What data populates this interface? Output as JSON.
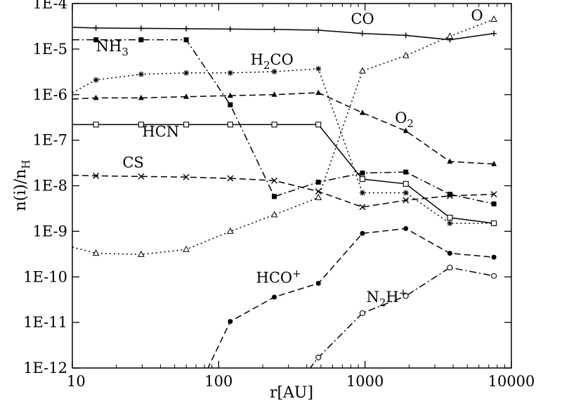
{
  "chart_data": {
    "type": "line",
    "x_scale": "log",
    "y_scale": "log",
    "xlim": [
      10,
      10000
    ],
    "ylim": [
      1e-12,
      0.0001
    ],
    "xlabel": "r[AU]",
    "ylabel": "n(i)/nH",
    "x_ticks": [
      "10",
      "100",
      "1000",
      "10000"
    ],
    "y_ticks": [
      "1E-12",
      "1E-11",
      "1E-10",
      "1E-9",
      "1E-8",
      "1E-7",
      "1E-6",
      "1E-5",
      "1E-4"
    ],
    "grid": false,
    "legend": "none",
    "series": [
      {
        "name": "CO",
        "line": "solid",
        "marker": "plus",
        "x": [
          10,
          14.5,
          29.5,
          60,
          120,
          240,
          480,
          960,
          1900,
          3800,
          7600
        ],
        "y": [
          3e-05,
          2.9e-05,
          2.85e-05,
          2.8e-05,
          2.75e-05,
          2.7e-05,
          2.6e-05,
          2.2e-05,
          2e-05,
          1.6e-05,
          2.2e-05
        ]
      },
      {
        "name": "NH3",
        "line": "dashdot",
        "marker": "filled-square",
        "x": [
          10,
          14.5,
          29.5,
          60,
          120,
          240,
          480,
          960,
          1900,
          3800,
          7600
        ],
        "y": [
          1.6e-05,
          1.6e-05,
          1.6e-05,
          1.6e-05,
          6e-07,
          5.8e-09,
          1.2e-08,
          1.9e-08,
          2e-08,
          6.5e-09,
          4e-09
        ]
      },
      {
        "name": "H2CO",
        "line": "dotted",
        "marker": "asterisk",
        "x": [
          10,
          14.5,
          29.5,
          60,
          120,
          240,
          480,
          960,
          1900,
          3800,
          7600
        ],
        "y": [
          1.1e-06,
          2.1e-06,
          2.8e-06,
          3e-06,
          3e-06,
          3.2e-06,
          3.7e-06,
          7e-09,
          7e-09,
          1.5e-09,
          1.5e-09
        ]
      },
      {
        "name": "O2",
        "line": "dashed",
        "marker": "filled-triangle",
        "x": [
          10,
          14.5,
          29.5,
          60,
          120,
          240,
          480,
          960,
          1900,
          3800,
          7600
        ],
        "y": [
          8e-07,
          8.5e-07,
          8.5e-07,
          9e-07,
          9.5e-07,
          1e-06,
          1.1e-06,
          4e-07,
          1.6e-07,
          3.4e-08,
          3e-08
        ]
      },
      {
        "name": "HCN",
        "line": "solid",
        "marker": "open-square",
        "x": [
          10,
          14.5,
          29.5,
          60,
          120,
          240,
          480,
          960,
          1900,
          3800,
          7600
        ],
        "y": [
          2.2e-07,
          2.2e-07,
          2.2e-07,
          2.2e-07,
          2.2e-07,
          2.2e-07,
          2.2e-07,
          1.4e-08,
          1.1e-08,
          2e-09,
          1.5e-09
        ]
      },
      {
        "name": "CS",
        "line": "dashed",
        "marker": "cross",
        "x": [
          10,
          14.5,
          29.5,
          60,
          120,
          240,
          480,
          960,
          1900,
          3800,
          7600
        ],
        "y": [
          1.7e-08,
          1.65e-08,
          1.6e-08,
          1.55e-08,
          1.45e-08,
          1.3e-08,
          7.5e-09,
          3.4e-09,
          4.8e-09,
          6e-09,
          6.5e-09
        ]
      },
      {
        "name": "O",
        "line": "dotted",
        "marker": "open-triangle",
        "x": [
          10,
          14.5,
          29.5,
          60,
          120,
          240,
          480,
          960,
          1900,
          3800,
          7600
        ],
        "y": [
          4.5e-10,
          3.3e-10,
          3.1e-10,
          4e-10,
          1e-09,
          2.3e-09,
          5.5e-09,
          3.3e-06,
          7.2e-06,
          1.9e-05,
          4.5e-05
        ]
      },
      {
        "name": "HCO+",
        "line": "dashed",
        "marker": "filled-circle",
        "x": [
          60,
          120,
          240,
          480,
          960,
          1900,
          3800,
          7600
        ],
        "y": [
          1e-13,
          1.05e-11,
          3.6e-11,
          7.2e-11,
          9e-10,
          1.15e-09,
          3.3e-10,
          2.7e-10
        ]
      },
      {
        "name": "N2H+",
        "line": "dashdot",
        "marker": "open-circle",
        "x": [
          240,
          480,
          960,
          1900,
          3800,
          7600
        ],
        "y": [
          1e-13,
          1.7e-12,
          1.6e-11,
          3.8e-11,
          1.6e-10,
          1.05e-10
        ]
      }
    ],
    "labels": [
      {
        "text": "CO",
        "x": 800,
        "y": 3.6e-05
      },
      {
        "text": "O",
        "x": 5300,
        "y": 4.3e-05
      },
      {
        "text": "NH",
        "sub": "3",
        "x": 14.5,
        "y": 9e-06
      },
      {
        "text": "H",
        "sub": "2",
        "rest": "CO",
        "x": 165,
        "y": 4.6e-06
      },
      {
        "text": "O",
        "sub": "2",
        "x": 1600,
        "y": 2.4e-07
      },
      {
        "text": "HCN",
        "x": 30,
        "y": 1.2e-07
      },
      {
        "text": "CS",
        "x": 22,
        "y": 2.5e-08
      },
      {
        "text": "HCO",
        "sup": "+",
        "x": 180,
        "y": 7.5e-11
      },
      {
        "text": "N",
        "sub": "2",
        "rest": "H",
        "sup": "+",
        "x": 1020,
        "y": 2.8e-11
      }
    ]
  }
}
